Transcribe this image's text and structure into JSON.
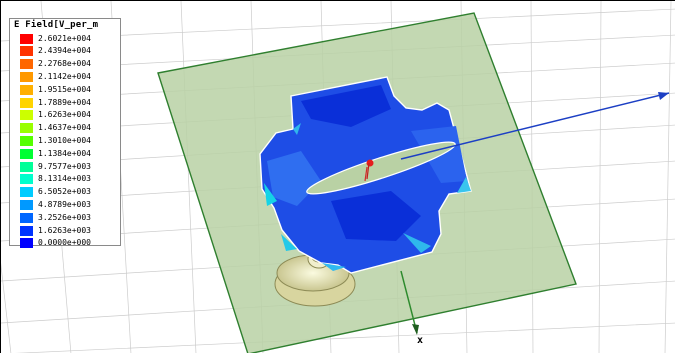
{
  "legend": {
    "title": "E Field[V_per_m",
    "entries": [
      {
        "label": "2.6021e+004",
        "color": "#ff0000"
      },
      {
        "label": "2.4394e+004",
        "color": "#ff3300"
      },
      {
        "label": "2.2768e+004",
        "color": "#ff6600"
      },
      {
        "label": "2.1142e+004",
        "color": "#ff9900"
      },
      {
        "label": "1.9515e+004",
        "color": "#ffb000"
      },
      {
        "label": "1.7889e+004",
        "color": "#ffd400"
      },
      {
        "label": "1.6263e+004",
        "color": "#ccff00"
      },
      {
        "label": "1.4637e+004",
        "color": "#99ff00"
      },
      {
        "label": "1.3010e+004",
        "color": "#55ff00"
      },
      {
        "label": "1.1384e+004",
        "color": "#00ff33"
      },
      {
        "label": "9.7577e+003",
        "color": "#00ff99"
      },
      {
        "label": "8.1314e+003",
        "color": "#00ffcc"
      },
      {
        "label": "6.5052e+003",
        "color": "#00ccff"
      },
      {
        "label": "4.8789e+003",
        "color": "#0099ff"
      },
      {
        "label": "3.2526e+003",
        "color": "#0066ff"
      },
      {
        "label": "1.6263e+003",
        "color": "#0033ff"
      },
      {
        "label": "0.0000e+000",
        "color": "#0000ff"
      }
    ]
  },
  "axes": {
    "x_label": "x"
  },
  "colors": {
    "substrate_fill": "#b5cfa0",
    "substrate_stroke": "#2f7f2f",
    "grid_line": "#c8c8c8",
    "axis_blue": "#1c3fc4",
    "axis_green": "#2c8a2c",
    "connector": "#e4e2b0"
  }
}
